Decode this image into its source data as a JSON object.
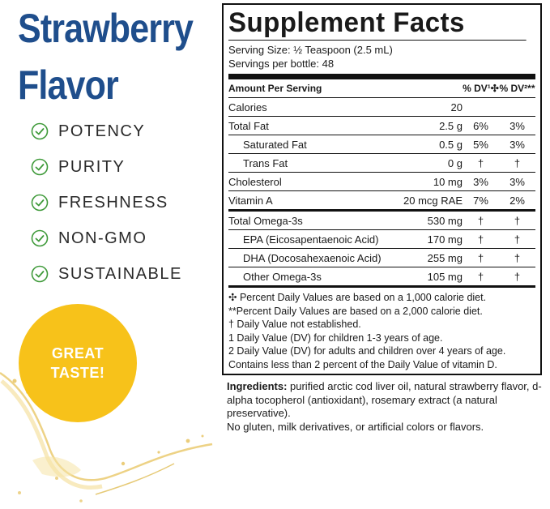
{
  "left": {
    "title_line1": "Strawberry",
    "title_line2": "Flavor",
    "claims": [
      "POTENCY",
      "PURITY",
      "FRESHNESS",
      "NON-GMO",
      "SUSTAINABLE"
    ],
    "badge_line1": "GREAT",
    "badge_line2": "TASTE!",
    "colors": {
      "title": "#1f4e8c",
      "check": "#3f9a3a",
      "badge": "#f7c21a"
    }
  },
  "facts": {
    "title": "Supplement Facts",
    "serving_size": "Serving Size: ½ Teaspoon (2.5 mL)",
    "servings_per": "Servings per bottle: 48",
    "header": {
      "amount": "Amount Per Serving",
      "dv1": "% DV¹✣",
      "dv2": "% DV²**"
    },
    "rows": [
      {
        "name": "Calories",
        "amount": "20",
        "dv1": "",
        "dv2": ""
      },
      {
        "name": "Total Fat",
        "amount": "2.5 g",
        "dv1": "6%",
        "dv2": "3%"
      },
      {
        "name": "Saturated Fat",
        "amount": "0.5 g",
        "dv1": "5%",
        "dv2": "3%"
      },
      {
        "name": "Trans Fat",
        "amount": "0 g",
        "dv1": "†",
        "dv2": "†"
      },
      {
        "name": "Cholesterol",
        "amount": "10 mg",
        "dv1": "3%",
        "dv2": "3%"
      },
      {
        "name": "Vitamin A",
        "amount": "20 mcg RAE",
        "dv1": "7%",
        "dv2": "2%"
      }
    ],
    "omega_rows": [
      {
        "name": "Total Omega-3s",
        "amount": "530 mg",
        "dv1": "†",
        "dv2": "†"
      },
      {
        "name": "EPA (Eicosapentaenoic Acid)",
        "amount": "170 mg",
        "dv1": "†",
        "dv2": "†"
      },
      {
        "name": "DHA (Docosahexaenoic Acid)",
        "amount": "255 mg",
        "dv1": "†",
        "dv2": "†"
      },
      {
        "name": "Other Omega-3s",
        "amount": "105 mg",
        "dv1": "†",
        "dv2": "†"
      }
    ],
    "footnotes": [
      "✣ Percent Daily Values are based on a 1,000 calorie diet.",
      "**Percent Daily Values are based on a 2,000 calorie diet.",
      "†  Daily Value not established.",
      "1  Daily Value (DV) for children 1-3 years of age.",
      "2  Daily Value (DV) for adults and children over 4 years of age.",
      "Contains less than 2 percent of the Daily Value of vitamin D."
    ]
  },
  "ingredients": {
    "label": "Ingredients:",
    "text": " purified arctic cod liver oil, natural strawberry flavor, d-alpha tocopherol (antioxidant), rosemary extract (a natural preservative).",
    "free_from": "No gluten, milk derivatives, or artificial colors or flavors."
  }
}
